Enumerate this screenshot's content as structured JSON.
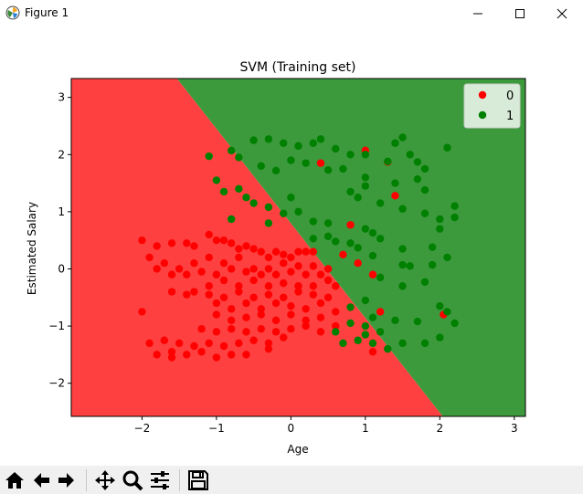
{
  "window": {
    "title": "Figure 1",
    "controls": [
      "minimize",
      "maximize",
      "close"
    ]
  },
  "toolbar": {
    "buttons": [
      "home-icon",
      "back-icon",
      "forward-icon",
      "pan-icon",
      "zoom-icon",
      "configure-subplots-icon",
      "save-icon"
    ]
  },
  "colors": {
    "class0_region": "#ff4040",
    "class1_region": "#3c9a3c",
    "class0_point": "#ff0000",
    "class1_point": "#008000"
  },
  "chart_data": {
    "type": "scatter",
    "title": "SVM (Training set)",
    "xlabel": "Age",
    "ylabel": "Estimated Salary",
    "xlim": [
      -2.95,
      3.15
    ],
    "ylim": [
      -2.58,
      3.33
    ],
    "xticks": [
      -2,
      -1,
      0,
      1,
      2,
      3
    ],
    "yticks": [
      -2,
      -1,
      0,
      1,
      2,
      3
    ],
    "xtick_labels": [
      "−2",
      "−1",
      "0",
      "1",
      "2",
      "3"
    ],
    "ytick_labels": [
      "−2",
      "−1",
      "0",
      "1",
      "2",
      "3"
    ],
    "legend": {
      "position": "top-right",
      "labels": [
        "0",
        "1"
      ]
    },
    "decision_boundary": [
      [
        -1.53,
        3.33
      ],
      [
        2.04,
        -2.58
      ]
    ],
    "series": [
      {
        "name": "0",
        "points": [
          [
            -2.0,
            0.5
          ],
          [
            -1.8,
            0.4
          ],
          [
            -1.6,
            0.45
          ],
          [
            -1.4,
            0.45
          ],
          [
            -1.3,
            0.4
          ],
          [
            -1.1,
            0.6
          ],
          [
            -1.0,
            0.5
          ],
          [
            -0.9,
            0.5
          ],
          [
            -0.8,
            0.45
          ],
          [
            -0.7,
            0.35
          ],
          [
            -0.6,
            0.4
          ],
          [
            -0.5,
            0.35
          ],
          [
            -0.4,
            0.3
          ],
          [
            -0.3,
            0.2
          ],
          [
            -0.2,
            0.3
          ],
          [
            -0.1,
            0.25
          ],
          [
            0.0,
            0.2
          ],
          [
            0.1,
            0.3
          ],
          [
            0.2,
            0.3
          ],
          [
            0.3,
            0.3
          ],
          [
            -1.9,
            0.2
          ],
          [
            -1.7,
            0.1
          ],
          [
            -1.5,
            0.0
          ],
          [
            -1.3,
            0.1
          ],
          [
            -1.1,
            0.2
          ],
          [
            -0.9,
            0.1
          ],
          [
            -0.7,
            0.2
          ],
          [
            -0.5,
            0.0
          ],
          [
            -0.3,
            0.0
          ],
          [
            -0.1,
            0.1
          ],
          [
            0.1,
            0.05
          ],
          [
            0.3,
            0.05
          ],
          [
            0.5,
            0.0
          ],
          [
            -1.8,
            0.0
          ],
          [
            -1.6,
            -0.1
          ],
          [
            -1.4,
            -0.1
          ],
          [
            -1.2,
            -0.05
          ],
          [
            -1.0,
            -0.1
          ],
          [
            -0.8,
            0.0
          ],
          [
            -0.6,
            -0.05
          ],
          [
            -0.4,
            -0.1
          ],
          [
            -0.2,
            -0.1
          ],
          [
            0.0,
            -0.05
          ],
          [
            0.2,
            -0.1
          ],
          [
            0.4,
            -0.1
          ],
          [
            -1.1,
            -0.3
          ],
          [
            -0.9,
            -0.2
          ],
          [
            -0.7,
            -0.3
          ],
          [
            -0.5,
            -0.2
          ],
          [
            -0.3,
            -0.3
          ],
          [
            -0.1,
            -0.25
          ],
          [
            0.1,
            -0.3
          ],
          [
            0.3,
            -0.3
          ],
          [
            0.5,
            -0.2
          ],
          [
            0.6,
            -0.3
          ],
          [
            -1.3,
            -0.4
          ],
          [
            -1.1,
            -0.45
          ],
          [
            -0.9,
            -0.5
          ],
          [
            -0.7,
            -0.4
          ],
          [
            -0.5,
            -0.5
          ],
          [
            -0.3,
            -0.45
          ],
          [
            -0.1,
            -0.5
          ],
          [
            0.1,
            -0.4
          ],
          [
            0.3,
            -0.45
          ],
          [
            0.5,
            -0.5
          ],
          [
            -1.6,
            -0.4
          ],
          [
            -1.4,
            -0.45
          ],
          [
            -1.0,
            -0.6
          ],
          [
            -0.8,
            -0.7
          ],
          [
            -0.6,
            -0.6
          ],
          [
            -0.4,
            -0.7
          ],
          [
            -0.2,
            -0.6
          ],
          [
            0.0,
            -0.65
          ],
          [
            0.2,
            -0.7
          ],
          [
            0.4,
            -0.6
          ],
          [
            -2.0,
            -0.75
          ],
          [
            -1.0,
            -0.8
          ],
          [
            -0.8,
            -0.9
          ],
          [
            -0.6,
            -0.85
          ],
          [
            -0.4,
            -0.8
          ],
          [
            -0.2,
            -0.9
          ],
          [
            0.0,
            -0.8
          ],
          [
            0.2,
            -0.9
          ],
          [
            0.4,
            -0.85
          ],
          [
            0.6,
            -0.75
          ],
          [
            -1.2,
            -1.05
          ],
          [
            -1.0,
            -1.1
          ],
          [
            -0.8,
            -1.05
          ],
          [
            -0.6,
            -1.1
          ],
          [
            -0.4,
            -1.05
          ],
          [
            -0.2,
            -1.1
          ],
          [
            0.0,
            -1.05
          ],
          [
            0.2,
            -1.0
          ],
          [
            0.4,
            -1.1
          ],
          [
            0.6,
            -1.0
          ],
          [
            -1.9,
            -1.3
          ],
          [
            -1.7,
            -1.25
          ],
          [
            -1.5,
            -1.3
          ],
          [
            -1.3,
            -1.35
          ],
          [
            -1.1,
            -1.3
          ],
          [
            -0.9,
            -1.35
          ],
          [
            -0.7,
            -1.3
          ],
          [
            -0.5,
            -1.25
          ],
          [
            -0.3,
            -1.3
          ],
          [
            -0.1,
            -1.2
          ],
          [
            -1.8,
            -1.5
          ],
          [
            -1.6,
            -1.45
          ],
          [
            -1.4,
            -1.5
          ],
          [
            -1.2,
            -1.45
          ],
          [
            -1.0,
            -1.55
          ],
          [
            -0.8,
            -1.5
          ],
          [
            -0.6,
            -1.5
          ],
          [
            -0.3,
            -1.4
          ],
          [
            0.4,
            1.85
          ],
          [
            1.0,
            2.07
          ],
          [
            1.3,
            1.87
          ],
          [
            1.4,
            1.28
          ],
          [
            0.8,
            0.77
          ],
          [
            0.7,
            0.25
          ],
          [
            0.9,
            0.1
          ],
          [
            1.1,
            -0.1
          ],
          [
            1.2,
            -0.75
          ],
          [
            2.05,
            -0.8
          ],
          [
            1.1,
            -1.45
          ],
          [
            -1.6,
            -1.55
          ]
        ]
      },
      {
        "name": "1",
        "points": [
          [
            -0.5,
            2.25
          ],
          [
            -0.3,
            2.27
          ],
          [
            -0.1,
            2.2
          ],
          [
            0.1,
            2.15
          ],
          [
            0.3,
            2.2
          ],
          [
            0.4,
            2.27
          ],
          [
            0.6,
            2.1
          ],
          [
            0.8,
            2.0
          ],
          [
            1.0,
            2.0
          ],
          [
            1.3,
            1.88
          ],
          [
            1.4,
            2.2
          ],
          [
            1.5,
            2.3
          ],
          [
            1.6,
            2.0
          ],
          [
            1.7,
            1.87
          ],
          [
            1.8,
            1.75
          ],
          [
            2.1,
            2.12
          ],
          [
            -1.1,
            1.97
          ],
          [
            -0.8,
            2.07
          ],
          [
            -0.7,
            1.95
          ],
          [
            -0.4,
            1.8
          ],
          [
            -0.2,
            1.72
          ],
          [
            0.0,
            1.9
          ],
          [
            0.2,
            1.85
          ],
          [
            0.5,
            1.73
          ],
          [
            0.7,
            1.75
          ],
          [
            1.0,
            1.6
          ],
          [
            1.4,
            1.5
          ],
          [
            1.7,
            1.57
          ],
          [
            1.8,
            1.38
          ],
          [
            -1.0,
            1.55
          ],
          [
            -0.9,
            1.35
          ],
          [
            -0.7,
            1.4
          ],
          [
            -0.6,
            1.25
          ],
          [
            -0.5,
            1.15
          ],
          [
            -0.3,
            1.08
          ],
          [
            -0.1,
            0.97
          ],
          [
            0.0,
            1.25
          ],
          [
            0.1,
            1.0
          ],
          [
            0.3,
            0.83
          ],
          [
            0.5,
            0.8
          ],
          [
            0.8,
            1.35
          ],
          [
            0.9,
            1.25
          ],
          [
            1.0,
            1.45
          ],
          [
            1.2,
            1.15
          ],
          [
            1.5,
            1.05
          ],
          [
            1.8,
            0.97
          ],
          [
            2.0,
            0.87
          ],
          [
            2.2,
            0.9
          ],
          [
            2.2,
            1.1
          ],
          [
            -0.8,
            0.87
          ],
          [
            -0.3,
            0.8
          ],
          [
            0.3,
            0.53
          ],
          [
            0.5,
            0.57
          ],
          [
            0.6,
            0.48
          ],
          [
            0.8,
            0.45
          ],
          [
            1.0,
            0.7
          ],
          [
            1.1,
            0.63
          ],
          [
            1.2,
            0.53
          ],
          [
            1.5,
            0.35
          ],
          [
            1.9,
            0.38
          ],
          [
            2.0,
            0.7
          ],
          [
            0.9,
            0.37
          ],
          [
            1.1,
            0.23
          ],
          [
            1.5,
            0.07
          ],
          [
            1.6,
            0.05
          ],
          [
            1.9,
            0.07
          ],
          [
            2.1,
            0.2
          ],
          [
            1.2,
            -0.15
          ],
          [
            1.5,
            -0.3
          ],
          [
            1.8,
            -0.23
          ],
          [
            1.0,
            -0.55
          ],
          [
            0.8,
            -0.67
          ],
          [
            1.1,
            -0.85
          ],
          [
            1.4,
            -0.9
          ],
          [
            1.7,
            -0.92
          ],
          [
            2.0,
            -0.65
          ],
          [
            2.1,
            -0.75
          ],
          [
            2.2,
            -0.95
          ],
          [
            0.8,
            -0.95
          ],
          [
            1.0,
            -1.0
          ],
          [
            1.2,
            -1.1
          ],
          [
            0.6,
            -1.1
          ],
          [
            0.7,
            -1.3
          ],
          [
            0.9,
            -1.25
          ],
          [
            1.1,
            -1.3
          ],
          [
            1.3,
            -1.4
          ],
          [
            1.5,
            -1.3
          ],
          [
            1.8,
            -1.3
          ],
          [
            2.0,
            -1.2
          ],
          [
            1.0,
            -1.15
          ]
        ]
      }
    ]
  }
}
